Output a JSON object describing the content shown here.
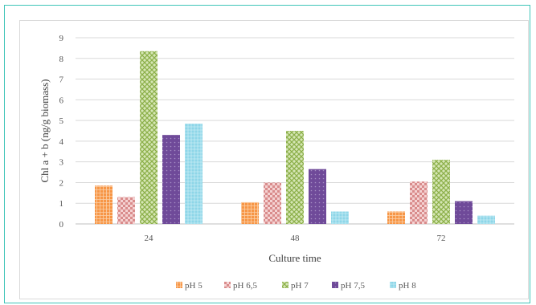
{
  "chart_data": {
    "type": "bar",
    "title": "",
    "xlabel": "Culture time",
    "ylabel": "Chl a + b (ng/g biomass)",
    "categories": [
      "24",
      "48",
      "72"
    ],
    "ylim": [
      0,
      9
    ],
    "yticks": [
      "0",
      "1",
      "2",
      "3",
      "4",
      "5",
      "6",
      "7",
      "8",
      "9"
    ],
    "grid": true,
    "legend_position": "bottom",
    "series": [
      {
        "name": "pH 5",
        "values": [
          1.85,
          1.05,
          0.6
        ],
        "color": "#f79646",
        "pattern": "grid"
      },
      {
        "name": "pH 6,5",
        "values": [
          1.3,
          2.0,
          2.05
        ],
        "color": "#e8a7a7",
        "pattern": "checker"
      },
      {
        "name": "pH 7",
        "values": [
          8.35,
          4.5,
          3.1
        ],
        "color": "#9bbb59",
        "pattern": "zigzag"
      },
      {
        "name": "pH 7,5",
        "values": [
          4.3,
          2.65,
          1.1
        ],
        "color": "#7a53a3",
        "pattern": "dots"
      },
      {
        "name": "pH 8",
        "values": [
          4.85,
          0.6,
          0.4
        ],
        "color": "#6ccbe0",
        "pattern": "mesh"
      }
    ]
  }
}
